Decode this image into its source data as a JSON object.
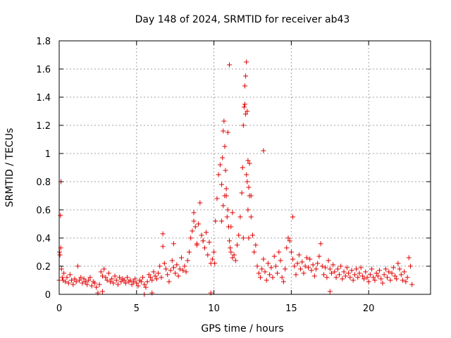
{
  "chart_data": {
    "type": "scatter",
    "title": "Day 148 of 2024, SRMTID for receiver ab43",
    "xlabel": "GPS time / hours",
    "ylabel": "SRMTID / TECUs",
    "xlim": [
      0,
      24
    ],
    "ylim": [
      0,
      1.8
    ],
    "xticks": [
      0,
      5,
      10,
      15,
      20
    ],
    "xtick_labels": [
      "0",
      "5",
      "10",
      "15",
      "20"
    ],
    "yticks": [
      0,
      0.2,
      0.4,
      0.6,
      0.8,
      1,
      1.2,
      1.4,
      1.6,
      1.8
    ],
    "ytick_labels": [
      "0",
      "0.2",
      "0.4",
      "0.6",
      "0.8",
      "1",
      "1.2",
      "1.4",
      "1.6",
      "1.8"
    ],
    "grid": true,
    "marker": "plus",
    "color": "#e00000",
    "series": [
      {
        "name": "SRMTID ab43",
        "x": [
          0.0,
          0.05,
          0.1,
          0.15,
          0.2,
          0.25,
          0.3,
          0.4,
          0.5,
          0.6,
          0.7,
          0.8,
          0.9,
          1.0,
          1.1,
          1.2,
          1.3,
          1.4,
          1.5,
          1.6,
          1.7,
          1.8,
          1.9,
          2.0,
          2.1,
          2.2,
          2.3,
          2.4,
          2.6,
          2.7,
          2.8,
          2.9,
          3.0,
          3.1,
          3.2,
          3.3,
          3.4,
          3.5,
          3.6,
          3.7,
          3.8,
          3.9,
          4.0,
          4.1,
          4.2,
          4.3,
          4.4,
          4.5,
          4.6,
          4.7,
          4.8,
          4.9,
          5.0,
          5.1,
          5.2,
          5.3,
          5.4,
          5.5,
          5.6,
          5.7,
          5.8,
          5.9,
          6.0,
          6.1,
          6.2,
          6.3,
          6.4,
          6.5,
          6.6,
          6.7,
          6.8,
          6.9,
          7.0,
          7.1,
          7.2,
          7.3,
          7.4,
          7.5,
          7.6,
          7.7,
          7.8,
          7.9,
          8.0,
          8.1,
          8.2,
          8.3,
          8.4,
          8.5,
          8.6,
          8.7,
          8.8,
          8.9,
          9.0,
          9.1,
          9.2,
          9.3,
          9.4,
          9.5,
          9.6,
          9.7,
          9.8,
          9.9,
          10.0,
          10.1,
          10.2,
          10.3,
          10.4,
          10.5,
          10.55,
          10.6,
          10.65,
          10.7,
          10.75,
          10.8,
          10.85,
          10.9,
          10.95,
          11.0,
          11.05,
          11.1,
          11.2,
          11.3,
          11.4,
          11.5,
          11.6,
          11.7,
          11.8,
          11.85,
          11.9,
          11.95,
          12.0,
          12.05,
          12.1,
          12.15,
          12.2,
          12.25,
          12.3,
          12.4,
          12.5,
          12.6,
          12.7,
          12.8,
          12.9,
          13.0,
          13.1,
          13.2,
          13.3,
          13.4,
          13.5,
          13.6,
          13.7,
          13.8,
          13.9,
          14.0,
          14.1,
          14.2,
          14.3,
          14.4,
          14.5,
          14.6,
          14.7,
          14.8,
          14.9,
          15.0,
          15.1,
          15.2,
          15.3,
          15.4,
          15.5,
          15.6,
          15.7,
          15.8,
          15.9,
          16.0,
          16.1,
          16.2,
          16.3,
          16.4,
          16.5,
          16.6,
          16.7,
          16.8,
          16.9,
          17.0,
          17.1,
          17.2,
          17.3,
          17.4,
          17.5,
          17.6,
          17.7,
          17.8,
          17.9,
          18.0,
          18.1,
          18.2,
          18.3,
          18.4,
          18.5,
          18.6,
          18.7,
          18.8,
          18.9,
          19.0,
          19.1,
          19.2,
          19.3,
          19.4,
          19.5,
          19.6,
          19.7,
          19.8,
          19.9,
          20.0,
          20.1,
          20.2,
          20.3,
          20.4,
          20.5,
          20.6,
          20.7,
          20.8,
          20.9,
          21.0,
          21.1,
          21.2,
          21.3,
          21.4,
          21.5,
          21.6,
          21.7,
          21.8,
          21.9,
          22.0,
          22.1,
          22.2,
          22.3,
          22.4,
          22.5,
          22.6,
          22.7,
          22.8,
          0.02,
          0.08,
          0.12,
          10.6,
          10.7,
          10.9,
          11.0,
          12.0,
          12.05,
          12.1,
          12.15,
          12.2,
          12.3,
          10.5,
          10.8,
          11.1,
          11.2,
          12.25,
          12.4,
          8.7,
          8.9,
          9.3,
          6.7,
          7.4,
          15.1,
          17.5,
          2.5,
          2.8,
          5.5,
          6.0,
          9.8,
          10.05,
          13.2,
          11.9
        ],
        "y": [
          0.1,
          0.28,
          0.33,
          0.18,
          0.12,
          0.1,
          0.15,
          0.09,
          0.12,
          0.08,
          0.14,
          0.1,
          0.07,
          0.11,
          0.09,
          0.2,
          0.1,
          0.12,
          0.08,
          0.11,
          0.09,
          0.07,
          0.1,
          0.12,
          0.06,
          0.09,
          0.08,
          0.05,
          0.07,
          0.16,
          0.13,
          0.18,
          0.12,
          0.1,
          0.15,
          0.09,
          0.11,
          0.08,
          0.13,
          0.1,
          0.07,
          0.12,
          0.09,
          0.11,
          0.1,
          0.08,
          0.12,
          0.09,
          0.1,
          0.07,
          0.09,
          0.11,
          0.08,
          0.06,
          0.1,
          0.09,
          0.12,
          0.07,
          0.05,
          0.09,
          0.14,
          0.12,
          0.1,
          0.16,
          0.13,
          0.11,
          0.15,
          0.2,
          0.12,
          0.34,
          0.22,
          0.18,
          0.14,
          0.09,
          0.17,
          0.24,
          0.19,
          0.15,
          0.21,
          0.13,
          0.18,
          0.26,
          0.17,
          0.2,
          0.16,
          0.24,
          0.3,
          0.4,
          0.45,
          0.52,
          0.48,
          0.36,
          0.5,
          0.65,
          0.42,
          0.38,
          0.33,
          0.44,
          0.28,
          0.37,
          0.22,
          0.25,
          0.3,
          0.52,
          0.68,
          0.85,
          0.92,
          0.78,
          0.97,
          1.16,
          1.23,
          1.05,
          0.88,
          0.75,
          0.55,
          0.6,
          0.48,
          0.38,
          0.33,
          0.3,
          0.26,
          0.28,
          0.24,
          0.35,
          0.42,
          0.55,
          0.72,
          0.9,
          1.2,
          1.33,
          1.48,
          1.55,
          1.65,
          1.3,
          0.95,
          0.76,
          0.7,
          0.55,
          0.42,
          0.3,
          0.35,
          0.2,
          0.15,
          0.12,
          0.18,
          0.25,
          0.16,
          0.1,
          0.22,
          0.14,
          0.19,
          0.12,
          0.27,
          0.2,
          0.15,
          0.3,
          0.24,
          0.12,
          0.09,
          0.18,
          0.33,
          0.4,
          0.38,
          0.3,
          0.25,
          0.2,
          0.14,
          0.22,
          0.28,
          0.18,
          0.23,
          0.15,
          0.2,
          0.26,
          0.19,
          0.25,
          0.17,
          0.21,
          0.13,
          0.18,
          0.22,
          0.27,
          0.36,
          0.2,
          0.14,
          0.19,
          0.12,
          0.24,
          0.18,
          0.15,
          0.21,
          0.16,
          0.12,
          0.18,
          0.14,
          0.2,
          0.11,
          0.16,
          0.13,
          0.19,
          0.15,
          0.12,
          0.17,
          0.1,
          0.14,
          0.18,
          0.12,
          0.15,
          0.19,
          0.13,
          0.11,
          0.16,
          0.12,
          0.09,
          0.14,
          0.18,
          0.12,
          0.1,
          0.15,
          0.13,
          0.17,
          0.11,
          0.08,
          0.14,
          0.18,
          0.12,
          0.16,
          0.1,
          0.15,
          0.19,
          0.13,
          0.11,
          0.22,
          0.18,
          0.14,
          0.1,
          0.16,
          0.09,
          0.12,
          0.26,
          0.2,
          0.07,
          0.3,
          0.56,
          0.8,
          0.63,
          0.7,
          1.15,
          1.63,
          1.35,
          1.28,
          0.85,
          0.8,
          0.6,
          0.93,
          0.52,
          0.7,
          0.48,
          0.58,
          0.4,
          0.7,
          0.58,
          0.35,
          0.38,
          0.43,
          0.36,
          0.55,
          0.02,
          0.01,
          0.02,
          0.0,
          0.01,
          0.01,
          0.22,
          1.02,
          0.4
        ]
      }
    ]
  }
}
